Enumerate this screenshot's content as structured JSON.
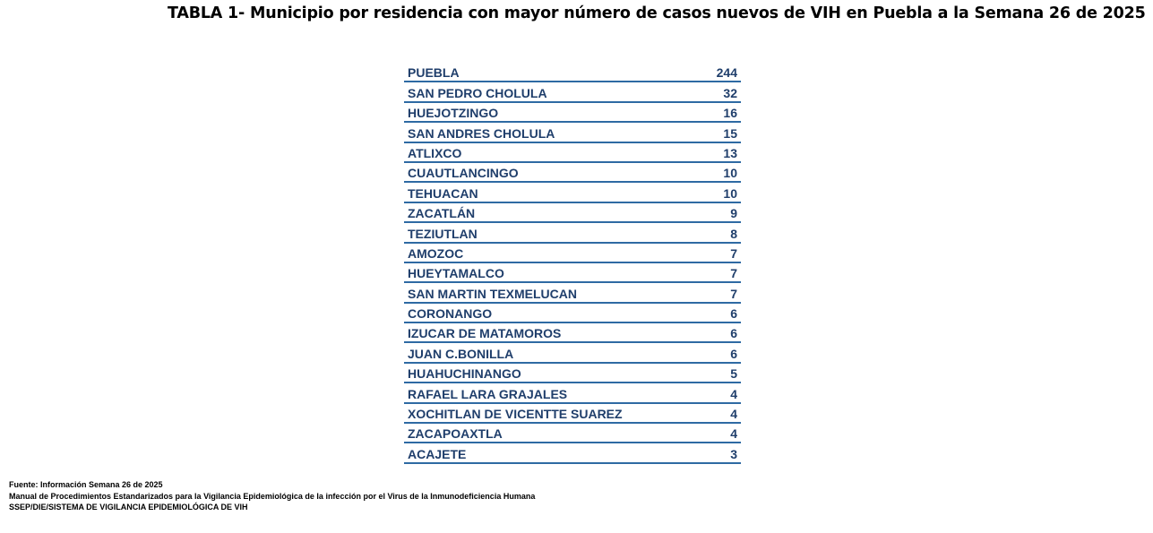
{
  "title": "TABLA 1- Municipio por residencia con mayor número de casos nuevos de VIH en Puebla a la Semana 26 de  2025",
  "table": {
    "rows": [
      {
        "municipio": "PUEBLA",
        "casos": "244"
      },
      {
        "municipio": "SAN PEDRO CHOLULA",
        "casos": "32"
      },
      {
        "municipio": "HUEJOTZINGO",
        "casos": "16"
      },
      {
        "municipio": "SAN ANDRES CHOLULA",
        "casos": "15"
      },
      {
        "municipio": "ATLIXCO",
        "casos": "13"
      },
      {
        "municipio": "CUAUTLANCINGO",
        "casos": "10"
      },
      {
        "municipio": "TEHUACAN",
        "casos": "10"
      },
      {
        "municipio": "ZACATLÁN",
        "casos": "9"
      },
      {
        "municipio": "TEZIUTLAN",
        "casos": "8"
      },
      {
        "municipio": "AMOZOC",
        "casos": "7"
      },
      {
        "municipio": "HUEYTAMALCO",
        "casos": "7"
      },
      {
        "municipio": "SAN MARTIN TEXMELUCAN",
        "casos": "7"
      },
      {
        "municipio": "CORONANGO",
        "casos": "6"
      },
      {
        "municipio": "IZUCAR DE MATAMOROS",
        "casos": "6"
      },
      {
        "municipio": "JUAN C.BONILLA",
        "casos": "6"
      },
      {
        "municipio": "HUAHUCHINANGO",
        "casos": "5"
      },
      {
        "municipio": "RAFAEL LARA GRAJALES",
        "casos": "4"
      },
      {
        "municipio": "XOCHITLAN DE VICENTTE SUAREZ",
        "casos": "4"
      },
      {
        "municipio": "ZACAPOAXTLA",
        "casos": "4"
      },
      {
        "municipio": "ACAJETE",
        "casos": "3"
      }
    ]
  },
  "footer": {
    "line1": "Fuente: Información Semana 26 de 2025",
    "line2": "Manual de Procedimientos Estandarizados para la Vigilancia Epidemiológica de la infección por el Virus de la Inmunodeficiencia Humana",
    "line3": "SSEP/DIE/SISTEMA DE VIGILANCIA EPIDEMIOLÓGICA DE VIH"
  },
  "colors": {
    "text": "#1f3e6b",
    "rule": "#2e6aa3",
    "title": "#000000"
  }
}
